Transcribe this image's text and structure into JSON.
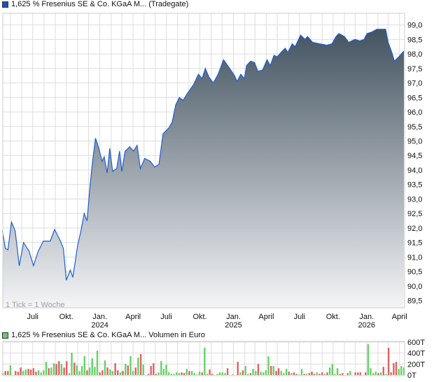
{
  "price_legend": {
    "label": "1,625 % Fresenius SE & Co. KGaA M... (Tradegate)",
    "color": "#1f4fc0"
  },
  "volume_legend": {
    "label": "1,625 % Fresenius SE & Co. KGaA M... Volumen in Euro",
    "color": "#66cc66"
  },
  "tick_note": "1 Tick = 1 Woche",
  "colors": {
    "line": "#1f5fd0",
    "fill_top": "#435360",
    "fill_bottom": "#f4f5f7",
    "grid": "#dddddd",
    "volume_up": "#66d166",
    "volume_down": "#d96464"
  },
  "chart_data": [
    {
      "type": "area",
      "xlim": [
        "2023-04-10",
        "2026-04-15"
      ],
      "ylim": [
        89.25,
        99.4
      ],
      "grid": true,
      "y_ticks": [
        "89,5",
        "90,0",
        "90,5",
        "91,0",
        "91,5",
        "92,0",
        "92,5",
        "93,0",
        "93,5",
        "94,0",
        "94,5",
        "95,0",
        "95,5",
        "96,0",
        "96,5",
        "97,0",
        "97,5",
        "98,0",
        "98,5",
        "99,0"
      ],
      "y_tick_values": [
        89.5,
        90,
        90.5,
        91,
        91.5,
        92,
        92.5,
        93,
        93.5,
        94,
        94.5,
        95,
        95.5,
        96,
        96.5,
        97,
        97.5,
        98,
        98.5,
        99
      ],
      "x_ticks": [
        {
          "date": "2023-07-01",
          "label": "Juli",
          "year": ""
        },
        {
          "date": "2023-10-01",
          "label": "Okt.",
          "year": ""
        },
        {
          "date": "2024-01-01",
          "label": "Jan.",
          "year": "2024"
        },
        {
          "date": "2024-04-01",
          "label": "April",
          "year": ""
        },
        {
          "date": "2024-07-01",
          "label": "Juli",
          "year": ""
        },
        {
          "date": "2024-10-01",
          "label": "Okt.",
          "year": ""
        },
        {
          "date": "2025-01-01",
          "label": "Jan.",
          "year": "2025"
        },
        {
          "date": "2025-04-01",
          "label": "April",
          "year": ""
        },
        {
          "date": "2025-07-01",
          "label": "Juli",
          "year": ""
        },
        {
          "date": "2025-10-01",
          "label": "Okt.",
          "year": ""
        },
        {
          "date": "2026-01-01",
          "label": "Jan.",
          "year": "2026"
        },
        {
          "date": "2026-04-01",
          "label": "April",
          "year": ""
        }
      ],
      "points": [
        [
          "2023-04-09",
          91.9
        ],
        [
          "2023-04-17",
          91.3
        ],
        [
          "2023-04-24",
          91.25
        ],
        [
          "2023-05-04",
          92.2
        ],
        [
          "2023-05-14",
          91.9
        ],
        [
          "2023-05-25",
          90.7
        ],
        [
          "2023-06-06",
          91.5
        ],
        [
          "2023-06-21",
          91.2
        ],
        [
          "2023-07-03",
          90.7
        ],
        [
          "2023-07-16",
          91.2
        ],
        [
          "2023-07-30",
          91.55
        ],
        [
          "2023-08-18",
          91.55
        ],
        [
          "2023-08-30",
          91.95
        ],
        [
          "2023-09-15",
          91.55
        ],
        [
          "2023-09-23",
          91.3
        ],
        [
          "2023-10-01",
          90.2
        ],
        [
          "2023-10-12",
          90.55
        ],
        [
          "2023-10-19",
          90.3
        ],
        [
          "2023-11-01",
          91.4
        ],
        [
          "2023-11-10",
          91.9
        ],
        [
          "2023-11-19",
          92.5
        ],
        [
          "2023-11-27",
          92.25
        ],
        [
          "2023-12-05",
          93.45
        ],
        [
          "2023-12-12",
          94.3
        ],
        [
          "2023-12-20",
          95.1
        ],
        [
          "2023-12-28",
          94.8
        ],
        [
          "2024-01-07",
          94.3
        ],
        [
          "2024-01-13",
          94.45
        ],
        [
          "2024-01-21",
          93.9
        ],
        [
          "2024-01-28",
          94.75
        ],
        [
          "2024-02-05",
          93.95
        ],
        [
          "2024-02-16",
          94.05
        ],
        [
          "2024-02-24",
          94.65
        ],
        [
          "2024-03-01",
          93.95
        ],
        [
          "2024-03-10",
          94.65
        ],
        [
          "2024-03-23",
          94.8
        ],
        [
          "2024-04-02",
          94.65
        ],
        [
          "2024-04-12",
          94.85
        ],
        [
          "2024-04-21",
          94.05
        ],
        [
          "2024-05-03",
          94.4
        ],
        [
          "2024-05-18",
          94.3
        ],
        [
          "2024-05-30",
          94.1
        ],
        [
          "2024-06-11",
          94.2
        ],
        [
          "2024-06-22",
          95.25
        ],
        [
          "2024-07-08",
          95.45
        ],
        [
          "2024-07-17",
          95.65
        ],
        [
          "2024-07-27",
          96.25
        ],
        [
          "2024-08-06",
          96.5
        ],
        [
          "2024-08-16",
          96.4
        ],
        [
          "2024-08-31",
          96.7
        ],
        [
          "2024-09-14",
          96.95
        ],
        [
          "2024-09-27",
          97.3
        ],
        [
          "2024-10-07",
          97.15
        ],
        [
          "2024-10-16",
          97.5
        ],
        [
          "2024-10-26",
          97.2
        ],
        [
          "2024-11-07",
          97.0
        ],
        [
          "2024-11-20",
          97.3
        ],
        [
          "2024-12-05",
          97.8
        ],
        [
          "2024-12-19",
          97.55
        ],
        [
          "2025-01-04",
          97.25
        ],
        [
          "2025-01-11",
          97.05
        ],
        [
          "2025-01-21",
          97.3
        ],
        [
          "2025-01-31",
          97.15
        ],
        [
          "2025-02-06",
          97.6
        ],
        [
          "2025-02-17",
          97.75
        ],
        [
          "2025-02-28",
          97.7
        ],
        [
          "2025-03-09",
          97.4
        ],
        [
          "2025-03-22",
          97.45
        ],
        [
          "2025-04-03",
          97.8
        ],
        [
          "2025-04-12",
          97.6
        ],
        [
          "2025-04-22",
          97.95
        ],
        [
          "2025-05-01",
          97.9
        ],
        [
          "2025-05-11",
          98.05
        ],
        [
          "2025-05-23",
          98.2
        ],
        [
          "2025-05-30",
          98.05
        ],
        [
          "2025-06-11",
          98.35
        ],
        [
          "2025-06-19",
          98.25
        ],
        [
          "2025-07-04",
          98.65
        ],
        [
          "2025-07-16",
          98.5
        ],
        [
          "2025-07-23",
          98.6
        ],
        [
          "2025-08-06",
          98.4
        ],
        [
          "2025-08-25",
          98.35
        ],
        [
          "2025-09-14",
          98.3
        ],
        [
          "2025-09-28",
          98.35
        ],
        [
          "2025-10-09",
          98.6
        ],
        [
          "2025-10-17",
          98.7
        ],
        [
          "2025-11-01",
          98.6
        ],
        [
          "2025-11-13",
          98.4
        ],
        [
          "2025-11-30",
          98.5
        ],
        [
          "2025-12-13",
          98.45
        ],
        [
          "2025-12-25",
          98.5
        ],
        [
          "2026-01-02",
          98.7
        ],
        [
          "2026-01-14",
          98.75
        ],
        [
          "2026-01-29",
          98.85
        ],
        [
          "2026-02-22",
          98.85
        ],
        [
          "2026-03-01",
          98.4
        ],
        [
          "2026-03-11",
          98.05
        ],
        [
          "2026-03-18",
          97.75
        ],
        [
          "2026-03-30",
          97.9
        ],
        [
          "2026-04-13",
          98.1
        ]
      ]
    },
    {
      "type": "bar",
      "title": "Volumen in Euro",
      "first_week": "2023-04-10",
      "interval": "1 week",
      "ylim": [
        0,
        600
      ],
      "unit": "T",
      "y_ticks": [
        "0T",
        "200T",
        "400T",
        "600T"
      ],
      "y_tick_values": [
        0,
        200,
        400,
        600
      ],
      "values": [
        34,
        73,
        73,
        176,
        0,
        73,
        60,
        137,
        73,
        99,
        112,
        99,
        124,
        60,
        86,
        47,
        86,
        240,
        124,
        137,
        215,
        202,
        253,
        202,
        137,
        253,
        34,
        408,
        227,
        176,
        73,
        163,
        343,
        86,
        137,
        305,
        150,
        446,
        47,
        86,
        266,
        137,
        99,
        73,
        215,
        86,
        47,
        73,
        202,
        176,
        343,
        73,
        137,
        317,
        382,
        189,
        0,
        21,
        163,
        215,
        21,
        47,
        253,
        112,
        189,
        47,
        21,
        21,
        47,
        34,
        47,
        34,
        112,
        73,
        73,
        34,
        9,
        60,
        47,
        498,
        21,
        99,
        21,
        0,
        21,
        47,
        47,
        34,
        124,
        0,
        9,
        0,
        240,
        47,
        86,
        163,
        21,
        34,
        112,
        73,
        202,
        60,
        47,
        86,
        343,
        163,
        163,
        73,
        124,
        73,
        34,
        112,
        60,
        34,
        47,
        21,
        9,
        112,
        21,
        21,
        34,
        60,
        21,
        47,
        21,
        47,
        21,
        47,
        137,
        202,
        21,
        124,
        21,
        34,
        0,
        34,
        73,
        0,
        47,
        47,
        47,
        0,
        47,
        562,
        124,
        34,
        60,
        34,
        47,
        150,
        21,
        498,
        47,
        215,
        240,
        112,
        163,
        137
      ],
      "direction": [
        "up",
        "down",
        "down",
        "up",
        "up",
        "down",
        "down",
        "down",
        "up",
        "up",
        "down",
        "down",
        "down",
        "down",
        "up",
        "up",
        "up",
        "up",
        "down",
        "up",
        "up",
        "down",
        "down",
        "up",
        "down",
        "down",
        "up",
        "up",
        "down",
        "up",
        "up",
        "up",
        "up",
        "down",
        "up",
        "up",
        "up",
        "up",
        "down",
        "down",
        "up",
        "down",
        "up",
        "up",
        "down",
        "down",
        "up",
        "down",
        "up",
        "down",
        "up",
        "up",
        "down",
        "up",
        "down",
        "up",
        "up",
        "down",
        "down",
        "down",
        "down",
        "up",
        "up",
        "up",
        "up",
        "up",
        "up",
        "up",
        "up",
        "up",
        "down",
        "down",
        "up",
        "down",
        "up",
        "up",
        "up",
        "up",
        "down",
        "up",
        "up",
        "down",
        "down",
        "up",
        "up",
        "up",
        "up",
        "up",
        "down",
        "up",
        "down",
        "up",
        "down",
        "up",
        "down",
        "up",
        "up",
        "down",
        "up",
        "up",
        "down",
        "up",
        "up",
        "up",
        "up",
        "down",
        "up",
        "down",
        "down",
        "up",
        "up",
        "up",
        "down",
        "up",
        "down",
        "down",
        "up",
        "up",
        "down",
        "up",
        "down",
        "down",
        "down",
        "up",
        "down",
        "down",
        "up",
        "down",
        "up",
        "up",
        "up",
        "up",
        "down",
        "down",
        "up",
        "down",
        "up",
        "up",
        "down",
        "down",
        "down",
        "up",
        "down",
        "up",
        "up",
        "up",
        "up",
        "down",
        "up",
        "down",
        "up",
        "down",
        "down",
        "down",
        "down",
        "up",
        "up",
        "up"
      ]
    }
  ]
}
